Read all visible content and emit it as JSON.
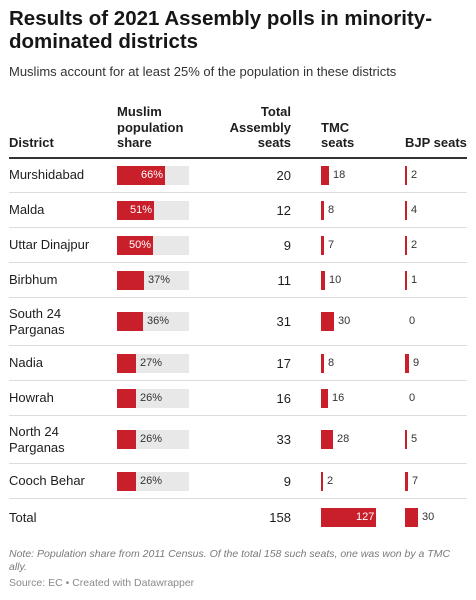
{
  "header": {
    "title": "Results of 2021 Assembly polls in minority-dominated districts",
    "subtitle": "Muslims account for at least 25% of the population in these districts"
  },
  "columns": {
    "district": "District",
    "share": "Muslim population share",
    "total": "Total Assembly seats",
    "tmc": "TMC seats",
    "bjp": "BJP seats"
  },
  "chart_data": {
    "type": "table",
    "title": "Results of 2021 Assembly polls in minority-dominated districts",
    "subtitle": "Muslims account for at least 25% of the population in these districts",
    "share_max": 100,
    "seat_max": 127,
    "rows": [
      {
        "district": "Murshidabad",
        "share": 66,
        "share_label": "66%",
        "total": 20,
        "tmc": 18,
        "bjp": 2
      },
      {
        "district": "Malda",
        "share": 51,
        "share_label": "51%",
        "total": 12,
        "tmc": 8,
        "bjp": 4
      },
      {
        "district": "Uttar Dinajpur",
        "share": 50,
        "share_label": "50%",
        "total": 9,
        "tmc": 7,
        "bjp": 2
      },
      {
        "district": "Birbhum",
        "share": 37,
        "share_label": "37%",
        "total": 11,
        "tmc": 10,
        "bjp": 1
      },
      {
        "district": "South 24 Parganas",
        "share": 36,
        "share_label": "36%",
        "total": 31,
        "tmc": 30,
        "bjp": 0
      },
      {
        "district": "Nadia",
        "share": 27,
        "share_label": "27%",
        "total": 17,
        "tmc": 8,
        "bjp": 9
      },
      {
        "district": "Howrah",
        "share": 26,
        "share_label": "26%",
        "total": 16,
        "tmc": 16,
        "bjp": 0
      },
      {
        "district": "North 24 Parganas",
        "share": 26,
        "share_label": "26%",
        "total": 33,
        "tmc": 28,
        "bjp": 5
      },
      {
        "district": "Cooch Behar",
        "share": 26,
        "share_label": "26%",
        "total": 9,
        "tmc": 2,
        "bjp": 7
      }
    ],
    "total_row": {
      "district": "Total",
      "total": 158,
      "tmc": 127,
      "bjp": 30
    },
    "colors": {
      "bar": "#c81f2a",
      "track": "#e8e8e8"
    }
  },
  "footer": {
    "note": "Note: Population share from 2011 Census. Of the total 158 such seats, one was won by a TMC ally.",
    "source": "Source: EC • Created with Datawrapper"
  }
}
